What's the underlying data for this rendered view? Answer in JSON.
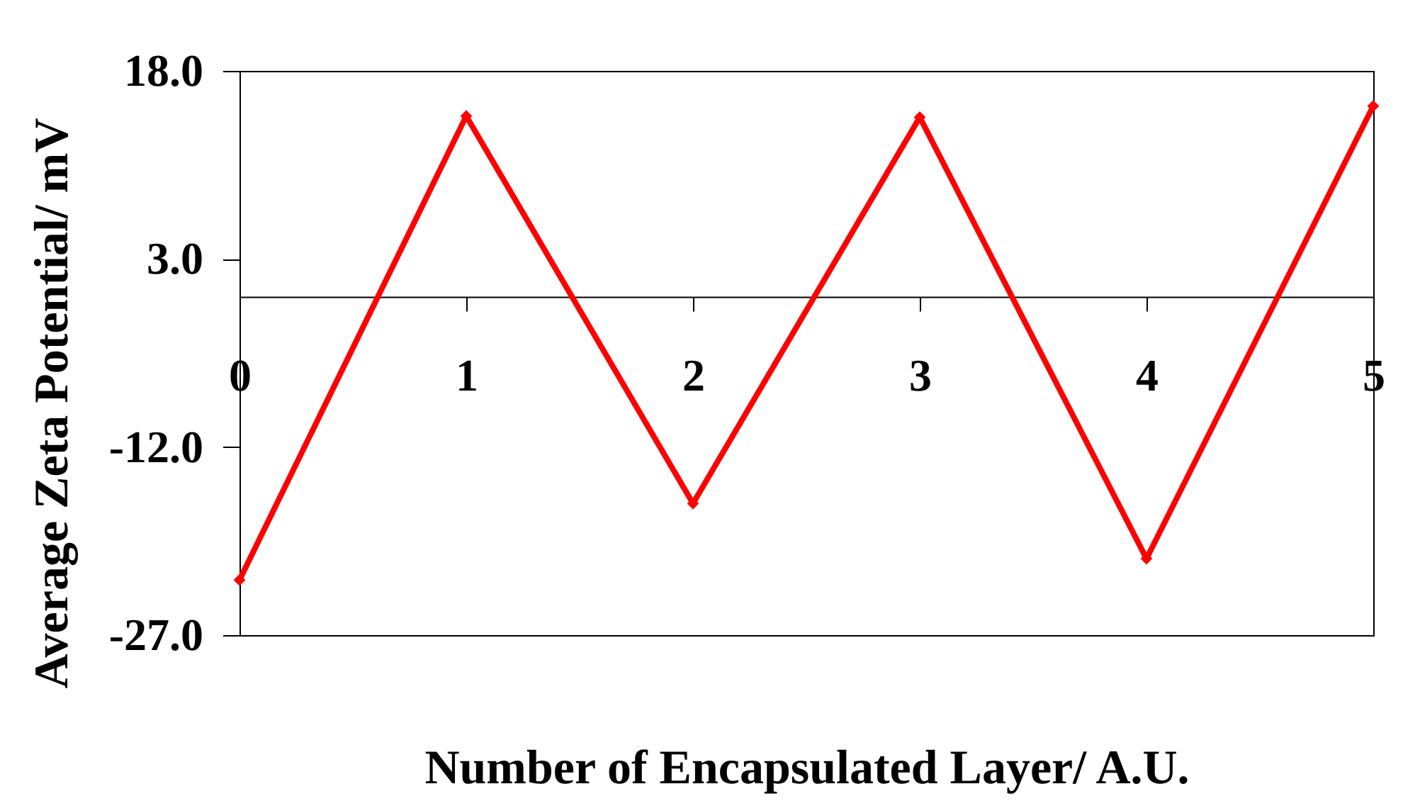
{
  "chart_data": {
    "type": "line",
    "xlabel": "Number of Encapsulated Layer/ A.U.",
    "ylabel": "Average Zeta Potential/ mV",
    "x": [
      0,
      1,
      2,
      3,
      4,
      5
    ],
    "series": [
      {
        "color": "#ff0000",
        "values": [
          -22.6,
          14.4,
          -16.5,
          14.3,
          -20.9,
          15.2
        ]
      }
    ],
    "xlim": [
      0,
      5
    ],
    "xticks": [
      0,
      1,
      2,
      3,
      4,
      5
    ],
    "ylim": [
      -27,
      18
    ],
    "yticks": [
      {
        "value": 18,
        "label": "18.0"
      },
      {
        "value": 3,
        "label": "3.0"
      },
      {
        "value": -12,
        "label": "-12.0"
      },
      {
        "value": -27,
        "label": "-27.0"
      }
    ],
    "marker": "diamond",
    "line_style": "solid"
  }
}
